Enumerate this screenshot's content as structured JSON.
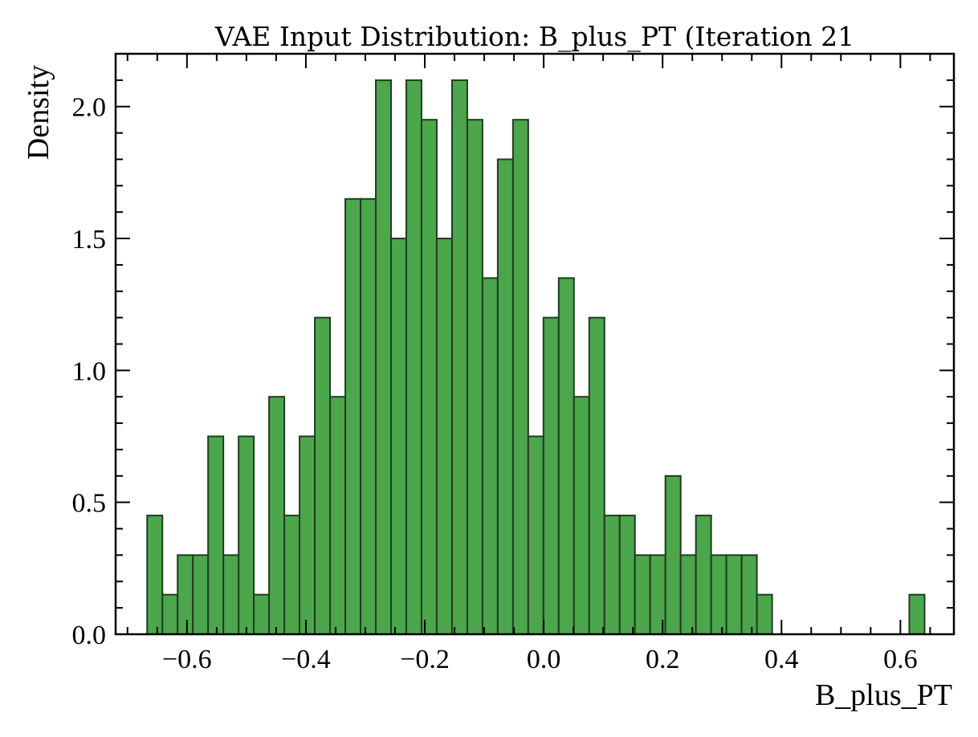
{
  "chart_data": {
    "type": "bar",
    "title": "VAE Input Distribution: B_plus_PT (Iteration 21",
    "xlabel": "B_plus_PT",
    "ylabel": "Density",
    "xlim": [
      -0.72,
      0.69
    ],
    "ylim": [
      0.0,
      2.2
    ],
    "x_ticks": [
      -0.6,
      -0.4,
      -0.2,
      0.0,
      0.2,
      0.4,
      0.6
    ],
    "x_tick_labels": [
      "−0.6",
      "−0.4",
      "−0.2",
      "0.0",
      "0.2",
      "0.4",
      "0.6"
    ],
    "y_ticks": [
      0.0,
      0.5,
      1.0,
      1.5,
      2.0
    ],
    "y_tick_labels": [
      "0.0",
      "0.5",
      "1.0",
      "1.5",
      "2.0"
    ],
    "bin_start": -0.667,
    "bin_width": 0.02564,
    "values": [
      0.45,
      0.15,
      0.3,
      0.3,
      0.75,
      0.3,
      0.75,
      0.15,
      0.9,
      0.45,
      0.75,
      1.2,
      0.9,
      1.65,
      1.65,
      2.1,
      1.5,
      2.1,
      1.95,
      1.5,
      2.1,
      1.95,
      1.35,
      1.8,
      1.95,
      0.75,
      1.2,
      1.35,
      0.9,
      1.2,
      0.45,
      0.45,
      0.3,
      0.3,
      0.6,
      0.3,
      0.45,
      0.3,
      0.3,
      0.3,
      0.15,
      0,
      0,
      0,
      0,
      0,
      0,
      0,
      0,
      0,
      0.15
    ],
    "bar_color": "#4ca64c",
    "edge_color": "#1f3d1f",
    "grid": false
  }
}
